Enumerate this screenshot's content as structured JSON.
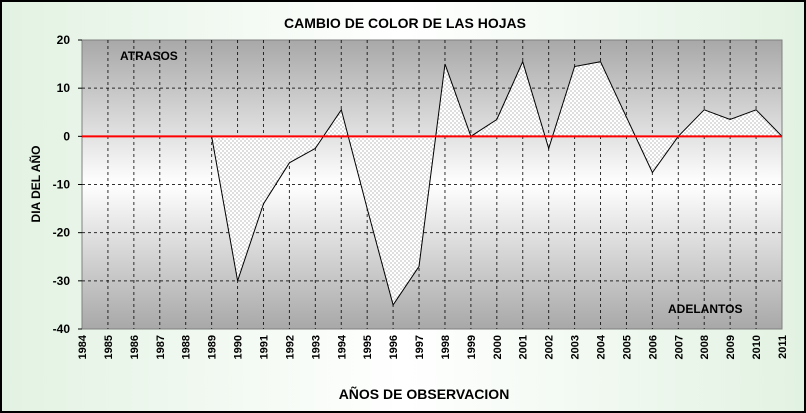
{
  "chart_data": {
    "type": "area",
    "title": "CAMBIO DE COLOR DE LAS HOJAS",
    "xlabel": "AÑOS DE OBSERVACION",
    "ylabel": "DIA DEL AÑO",
    "x": [
      "1984",
      "1985",
      "1986",
      "1987",
      "1988",
      "1989",
      "1990",
      "1991",
      "1992",
      "1993",
      "1994",
      "1995",
      "1996",
      "1997",
      "1998",
      "1999",
      "2000",
      "2001",
      "2002",
      "2003",
      "2004",
      "2005",
      "2006",
      "2007",
      "2008",
      "2009",
      "2010",
      "2011"
    ],
    "series": [
      {
        "values": [
          0,
          0,
          0,
          0,
          0,
          0,
          -30,
          -14,
          -5.5,
          -2.5,
          5.5,
          -15,
          -35,
          -27,
          15,
          0,
          3.5,
          15.5,
          -2.5,
          14.5,
          15.5,
          4,
          -7.5,
          0,
          5.5,
          3.5,
          5.5,
          0
        ]
      }
    ],
    "ylim": [
      -40,
      20
    ],
    "yticks": [
      20,
      10,
      0,
      -10,
      -20,
      -30,
      -40
    ],
    "annotations": {
      "upper": "ATRASOS",
      "lower": "ADELANTOS"
    },
    "grid": true,
    "colors": {
      "zero_line": "#ff0000",
      "lower_annotation": "#cc0000",
      "plot_bg": "#bdbdbd",
      "fill": "#f7f7f7"
    }
  }
}
